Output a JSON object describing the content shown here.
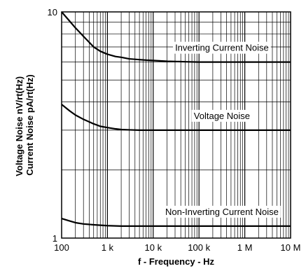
{
  "chart_data": {
    "type": "line",
    "title": "",
    "xlabel": "f - Frequency - Hz",
    "ylabel": [
      "Voltage Noise nV/rt(Hz)",
      "Current Noise pA/rt(Hz)"
    ],
    "x_scale": "log",
    "y_scale": "log",
    "xlim": [
      100,
      10000000
    ],
    "ylim": [
      1,
      10
    ],
    "grid": true,
    "x_ticks": [
      {
        "value": 100,
        "label": "100"
      },
      {
        "value": 1000,
        "label": "1 k"
      },
      {
        "value": 10000,
        "label": "10 k"
      },
      {
        "value": 100000,
        "label": "100 k"
      },
      {
        "value": 1000000,
        "label": "1 M"
      },
      {
        "value": 10000000,
        "label": "10 M"
      }
    ],
    "y_ticks": [
      {
        "value": 1,
        "label": "1"
      },
      {
        "value": 10,
        "label": "10"
      }
    ],
    "series": [
      {
        "label": "Inverting Current Noise",
        "x": [
          100,
          150,
          200,
          300,
          500,
          700,
          1000,
          1500,
          2000,
          3000,
          5000,
          7000,
          10000,
          20000,
          50000,
          100000,
          1000000,
          10000000
        ],
        "y": [
          10,
          9.1,
          8.5,
          7.8,
          7.0,
          6.7,
          6.5,
          6.35,
          6.3,
          6.2,
          6.15,
          6.12,
          6.1,
          6.05,
          6.02,
          6.0,
          6.0,
          6.0
        ]
      },
      {
        "label": "Voltage Noise",
        "x": [
          100,
          150,
          200,
          300,
          500,
          700,
          1000,
          1500,
          2000,
          3000,
          5000,
          10000,
          20000,
          100000,
          1000000,
          10000000
        ],
        "y": [
          3.9,
          3.65,
          3.5,
          3.35,
          3.2,
          3.12,
          3.08,
          3.04,
          3.02,
          3.01,
          3.0,
          3.0,
          3.0,
          3.0,
          3.0,
          3.0
        ]
      },
      {
        "label": "Non-Inverting Current Noise",
        "x": [
          100,
          150,
          200,
          300,
          500,
          700,
          1000,
          2000,
          5000,
          10000,
          100000,
          1000000,
          10000000
        ],
        "y": [
          1.22,
          1.19,
          1.17,
          1.155,
          1.145,
          1.14,
          1.135,
          1.13,
          1.13,
          1.13,
          1.13,
          1.13,
          1.13
        ]
      }
    ],
    "annotations": [
      {
        "text": "Inverting Current Noise",
        "series": 0
      },
      {
        "text": "Voltage Noise",
        "series": 1
      },
      {
        "text": "Non-Inverting Current Noise",
        "series": 2
      }
    ]
  }
}
